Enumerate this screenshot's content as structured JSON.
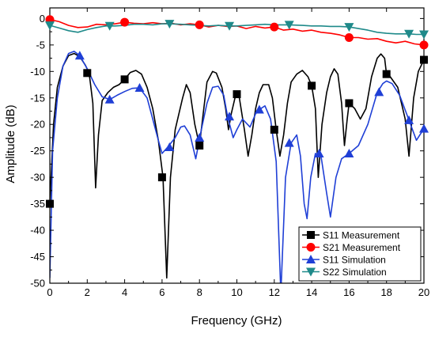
{
  "chart_data": {
    "type": "line",
    "title": "",
    "xlabel": "Frequency (GHz)",
    "ylabel": "Amplitude (dB)",
    "xlim": [
      0,
      20
    ],
    "ylim": [
      -50,
      2
    ],
    "x_ticks": [
      0,
      2,
      4,
      6,
      8,
      10,
      12,
      14,
      16,
      18,
      20
    ],
    "y_ticks": [
      0,
      -5,
      -10,
      -15,
      -20,
      -25,
      -30,
      -35,
      -40,
      -45,
      -50
    ],
    "grid": false,
    "legend_position": "bottom-right",
    "series": [
      {
        "name": "S11 Measurement",
        "color": "#000000",
        "marker": "square",
        "points": [
          [
            0.0,
            -35
          ],
          [
            0.2,
            -20
          ],
          [
            0.4,
            -13
          ],
          [
            0.7,
            -9
          ],
          [
            1.0,
            -7
          ],
          [
            1.3,
            -6.6
          ],
          [
            1.6,
            -7.2
          ],
          [
            1.9,
            -8.8
          ],
          [
            2.1,
            -10.3
          ],
          [
            2.3,
            -16
          ],
          [
            2.45,
            -32
          ],
          [
            2.6,
            -22
          ],
          [
            2.8,
            -15.5
          ],
          [
            3.1,
            -14
          ],
          [
            3.4,
            -13
          ],
          [
            3.7,
            -12.5
          ],
          [
            4.0,
            -11.5
          ],
          [
            4.3,
            -10.2
          ],
          [
            4.6,
            -9.8
          ],
          [
            4.9,
            -10.5
          ],
          [
            5.2,
            -13
          ],
          [
            5.5,
            -17
          ],
          [
            5.8,
            -23
          ],
          [
            6.05,
            -30
          ],
          [
            6.25,
            -49
          ],
          [
            6.45,
            -30
          ],
          [
            6.7,
            -21
          ],
          [
            6.9,
            -18
          ],
          [
            7.1,
            -15
          ],
          [
            7.3,
            -12.5
          ],
          [
            7.5,
            -14
          ],
          [
            7.75,
            -20
          ],
          [
            8.0,
            -24
          ],
          [
            8.2,
            -18
          ],
          [
            8.4,
            -12
          ],
          [
            8.7,
            -10
          ],
          [
            8.9,
            -10.3
          ],
          [
            9.2,
            -13
          ],
          [
            9.4,
            -17
          ],
          [
            9.55,
            -21
          ],
          [
            9.7,
            -18
          ],
          [
            9.9,
            -15
          ],
          [
            10.1,
            -14.3
          ],
          [
            10.4,
            -21
          ],
          [
            10.6,
            -26
          ],
          [
            10.8,
            -22
          ],
          [
            11.0,
            -17
          ],
          [
            11.2,
            -14
          ],
          [
            11.4,
            -12.5
          ],
          [
            11.7,
            -12.5
          ],
          [
            11.9,
            -15
          ],
          [
            12.1,
            -21
          ],
          [
            12.3,
            -26
          ],
          [
            12.5,
            -22
          ],
          [
            12.7,
            -16
          ],
          [
            12.9,
            -12
          ],
          [
            13.2,
            -10.5
          ],
          [
            13.5,
            -9.8
          ],
          [
            13.8,
            -11
          ],
          [
            14.0,
            -12.7
          ],
          [
            14.2,
            -17
          ],
          [
            14.35,
            -30
          ],
          [
            14.55,
            -20
          ],
          [
            14.8,
            -14
          ],
          [
            15.0,
            -11
          ],
          [
            15.2,
            -9.5
          ],
          [
            15.4,
            -10.5
          ],
          [
            15.6,
            -16
          ],
          [
            15.75,
            -24
          ],
          [
            15.9,
            -19
          ],
          [
            16.0,
            -16
          ],
          [
            16.3,
            -17
          ],
          [
            16.6,
            -19
          ],
          [
            16.9,
            -17
          ],
          [
            17.2,
            -11
          ],
          [
            17.5,
            -7.5
          ],
          [
            17.7,
            -6.7
          ],
          [
            17.9,
            -7.5
          ],
          [
            18.0,
            -10.5
          ],
          [
            18.2,
            -11
          ],
          [
            18.6,
            -13
          ],
          [
            19.0,
            -19
          ],
          [
            19.2,
            -26
          ],
          [
            19.45,
            -15
          ],
          [
            19.7,
            -10
          ],
          [
            20.0,
            -7.8
          ]
        ],
        "marker_points": [
          [
            0,
            -35
          ],
          [
            2,
            -10.3
          ],
          [
            4,
            -11.5
          ],
          [
            6,
            -30
          ],
          [
            8,
            -24
          ],
          [
            10,
            -14.3
          ],
          [
            12,
            -21
          ],
          [
            14,
            -12.7
          ],
          [
            16,
            -16
          ],
          [
            18,
            -10.5
          ],
          [
            20,
            -7.8
          ]
        ]
      },
      {
        "name": "S21 Measurement",
        "color": "#ff0000",
        "marker": "circle",
        "points": [
          [
            0,
            -0.2
          ],
          [
            0.5,
            -0.6
          ],
          [
            1.0,
            -1.3
          ],
          [
            1.5,
            -1.7
          ],
          [
            2.0,
            -1.6
          ],
          [
            2.5,
            -1.1
          ],
          [
            3.0,
            -1.2
          ],
          [
            3.5,
            -1.0
          ],
          [
            4.0,
            -0.7
          ],
          [
            4.5,
            -0.9
          ],
          [
            5.0,
            -1.0
          ],
          [
            5.5,
            -0.8
          ],
          [
            6.0,
            -1.0
          ],
          [
            6.5,
            -0.9
          ],
          [
            7.0,
            -1.2
          ],
          [
            7.5,
            -1.0
          ],
          [
            8.0,
            -1.2
          ],
          [
            8.5,
            -1.6
          ],
          [
            9.0,
            -1.3
          ],
          [
            9.5,
            -1.5
          ],
          [
            10.0,
            -1.4
          ],
          [
            10.5,
            -1.9
          ],
          [
            11.0,
            -1.5
          ],
          [
            11.5,
            -1.8
          ],
          [
            12.0,
            -1.6
          ],
          [
            12.5,
            -2.2
          ],
          [
            13.0,
            -2.0
          ],
          [
            13.5,
            -2.4
          ],
          [
            14.0,
            -2.2
          ],
          [
            14.5,
            -2.6
          ],
          [
            15.0,
            -2.8
          ],
          [
            15.5,
            -3.1
          ],
          [
            16.0,
            -3.6
          ],
          [
            16.5,
            -3.6
          ],
          [
            17.0,
            -3.9
          ],
          [
            17.5,
            -3.8
          ],
          [
            18.0,
            -4.3
          ],
          [
            18.5,
            -4.6
          ],
          [
            19.0,
            -4.3
          ],
          [
            19.5,
            -4.8
          ],
          [
            20.0,
            -5.0
          ]
        ],
        "marker_points": [
          [
            0,
            -0.2
          ],
          [
            4,
            -0.7
          ],
          [
            8,
            -1.2
          ],
          [
            12,
            -1.6
          ],
          [
            16,
            -3.6
          ],
          [
            20,
            -5.0
          ]
        ]
      },
      {
        "name": "S11 Simulation",
        "color": "#1f3fd6",
        "marker": "triangle-up",
        "points": [
          [
            0.0,
            -49
          ],
          [
            0.15,
            -25
          ],
          [
            0.4,
            -15
          ],
          [
            0.7,
            -9
          ],
          [
            1.0,
            -6.6
          ],
          [
            1.3,
            -6.2
          ],
          [
            1.6,
            -7.0
          ],
          [
            2.0,
            -9.5
          ],
          [
            2.4,
            -12.5
          ],
          [
            2.8,
            -14.8
          ],
          [
            3.2,
            -15.3
          ],
          [
            3.6,
            -14.5
          ],
          [
            4.0,
            -13.8
          ],
          [
            4.4,
            -13.2
          ],
          [
            4.8,
            -13.1
          ],
          [
            5.2,
            -15
          ],
          [
            5.5,
            -19
          ],
          [
            5.8,
            -23
          ],
          [
            6.0,
            -25.5
          ],
          [
            6.3,
            -24.3
          ],
          [
            6.7,
            -22.5
          ],
          [
            7.0,
            -20.5
          ],
          [
            7.2,
            -20.3
          ],
          [
            7.5,
            -22
          ],
          [
            7.8,
            -26.5
          ],
          [
            8.1,
            -21
          ],
          [
            8.4,
            -16
          ],
          [
            8.7,
            -13
          ],
          [
            9.0,
            -12.8
          ],
          [
            9.3,
            -14.5
          ],
          [
            9.5,
            -18.5
          ],
          [
            9.8,
            -22.5
          ],
          [
            10.0,
            -21
          ],
          [
            10.3,
            -19
          ],
          [
            10.7,
            -20.5
          ],
          [
            11.0,
            -18
          ],
          [
            11.2,
            -17.2
          ],
          [
            11.5,
            -16.5
          ],
          [
            11.8,
            -19
          ],
          [
            12.1,
            -27
          ],
          [
            12.35,
            -52
          ],
          [
            12.6,
            -30
          ],
          [
            12.9,
            -23.5
          ],
          [
            13.2,
            -22
          ],
          [
            13.4,
            -26
          ],
          [
            13.6,
            -35
          ],
          [
            13.75,
            -37.8
          ],
          [
            13.95,
            -30
          ],
          [
            14.2,
            -25.5
          ],
          [
            14.5,
            -26
          ],
          [
            14.8,
            -33
          ],
          [
            15.0,
            -37.5
          ],
          [
            15.3,
            -30
          ],
          [
            15.6,
            -26.5
          ],
          [
            16.0,
            -25.5
          ],
          [
            16.5,
            -24
          ],
          [
            17.0,
            -20
          ],
          [
            17.5,
            -14
          ],
          [
            17.8,
            -12.3
          ],
          [
            18.0,
            -11.8
          ],
          [
            18.3,
            -12.3
          ],
          [
            18.7,
            -14.5
          ],
          [
            19.2,
            -19.2
          ],
          [
            19.6,
            -23
          ],
          [
            20.0,
            -20.8
          ]
        ],
        "marker_points": [
          [
            1.6,
            -7.0
          ],
          [
            3.2,
            -15.3
          ],
          [
            4.8,
            -13.1
          ],
          [
            6.4,
            -24.3
          ],
          [
            8.0,
            -22.5
          ],
          [
            9.6,
            -18.5
          ],
          [
            11.2,
            -17.2
          ],
          [
            12.8,
            -23.5
          ],
          [
            14.4,
            -25.5
          ],
          [
            16.0,
            -25.5
          ],
          [
            17.6,
            -13.9
          ],
          [
            19.2,
            -19.2
          ],
          [
            20.0,
            -20.8
          ]
        ]
      },
      {
        "name": "S22 Simulation",
        "color": "#1f8a8a",
        "marker": "triangle-down",
        "points": [
          [
            0,
            -1.3
          ],
          [
            0.5,
            -1.8
          ],
          [
            1.0,
            -2.3
          ],
          [
            1.5,
            -2.6
          ],
          [
            2.0,
            -2.1
          ],
          [
            2.5,
            -1.7
          ],
          [
            3.0,
            -1.4
          ],
          [
            3.2,
            -1.4
          ],
          [
            3.5,
            -1.4
          ],
          [
            4.0,
            -1.3
          ],
          [
            4.5,
            -1.1
          ],
          [
            5.0,
            -1.1
          ],
          [
            5.5,
            -1.2
          ],
          [
            6.0,
            -1.0
          ],
          [
            6.4,
            -1.0
          ],
          [
            7.0,
            -1.1
          ],
          [
            7.5,
            -1.2
          ],
          [
            8.0,
            -1.3
          ],
          [
            8.5,
            -1.4
          ],
          [
            9.0,
            -1.3
          ],
          [
            9.6,
            -1.4
          ],
          [
            10.0,
            -1.4
          ],
          [
            10.5,
            -1.3
          ],
          [
            11.0,
            -1.2
          ],
          [
            11.5,
            -1.1
          ],
          [
            12.0,
            -1.2
          ],
          [
            12.8,
            -1.2
          ],
          [
            13.5,
            -1.3
          ],
          [
            14.0,
            -1.4
          ],
          [
            14.5,
            -1.4
          ],
          [
            15.0,
            -1.5
          ],
          [
            15.5,
            -1.5
          ],
          [
            16.0,
            -1.6
          ],
          [
            16.5,
            -1.9
          ],
          [
            17.0,
            -2.2
          ],
          [
            17.5,
            -2.6
          ],
          [
            18.0,
            -2.8
          ],
          [
            18.5,
            -2.9
          ],
          [
            19.2,
            -2.9
          ],
          [
            19.6,
            -3.0
          ],
          [
            20.0,
            -3.0
          ]
        ],
        "marker_points": [
          [
            0,
            -1.3
          ],
          [
            3.2,
            -1.4
          ],
          [
            6.4,
            -1.0
          ],
          [
            9.6,
            -1.4
          ],
          [
            12.8,
            -1.2
          ],
          [
            16.0,
            -1.6
          ],
          [
            19.2,
            -2.9
          ],
          [
            20.0,
            -3.0
          ]
        ]
      }
    ]
  }
}
